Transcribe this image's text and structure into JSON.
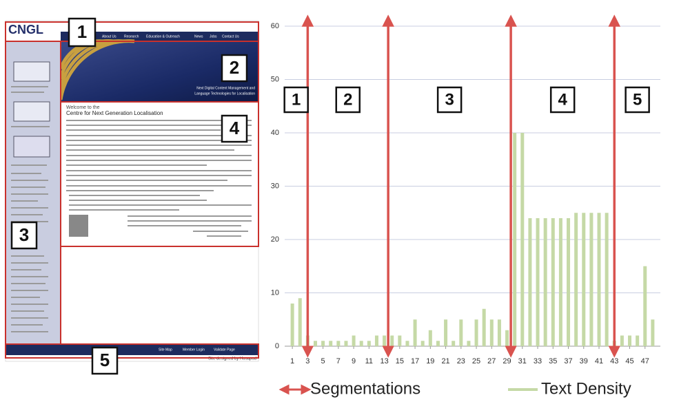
{
  "screenshot": {
    "logo": "CNGL",
    "nav": [
      "About Us",
      "Research",
      "Education & Outreach",
      "News",
      "Jobs",
      "Contact Us"
    ],
    "banner": [
      "Next Digital Content Management and",
      "Language Technologies for Localisation"
    ],
    "welcome": "Welcome to the",
    "heading": "Centre for Next Generation Localisation",
    "footer": [
      "Site Map",
      "Member Login",
      "Validate Page"
    ],
    "credit": "Site designed by Hosapod",
    "labels": [
      "1",
      "2",
      "3",
      "4",
      "5"
    ]
  },
  "chart_data": {
    "type": "bar",
    "x": [
      1,
      2,
      3,
      4,
      5,
      6,
      7,
      8,
      9,
      10,
      11,
      12,
      13,
      14,
      15,
      16,
      17,
      18,
      19,
      20,
      21,
      22,
      23,
      24,
      25,
      26,
      27,
      28,
      29,
      30,
      31,
      32,
      33,
      34,
      35,
      36,
      37,
      38,
      39,
      40,
      41,
      42,
      43,
      44,
      45,
      46,
      47,
      48
    ],
    "xlim": [
      0,
      49
    ],
    "xticks": [
      1,
      3,
      5,
      7,
      9,
      11,
      13,
      15,
      17,
      19,
      21,
      23,
      25,
      27,
      29,
      31,
      33,
      35,
      37,
      39,
      41,
      43,
      45,
      47
    ],
    "ylim": [
      0,
      60
    ],
    "yticks": [
      0,
      10,
      20,
      30,
      40,
      50,
      60
    ],
    "grid": true,
    "series": [
      {
        "name": "Text Density",
        "color": "#c5d9a6",
        "values": [
          8,
          9,
          2,
          1,
          1,
          1,
          1,
          1,
          2,
          1,
          1,
          2,
          2,
          2,
          2,
          1,
          5,
          1,
          3,
          1,
          5,
          1,
          5,
          1,
          5,
          7,
          5,
          5,
          3,
          40,
          40,
          24,
          24,
          24,
          24,
          24,
          24,
          25,
          25,
          25,
          25,
          25,
          1,
          2,
          2,
          2,
          15,
          5
        ]
      }
    ],
    "segmentations": {
      "name": "Segmentations",
      "color": "#d9534f",
      "x": [
        3,
        13.5,
        29.5,
        43
      ]
    },
    "segment_labels": [
      "1",
      "2",
      "3",
      "4",
      "5"
    ]
  }
}
